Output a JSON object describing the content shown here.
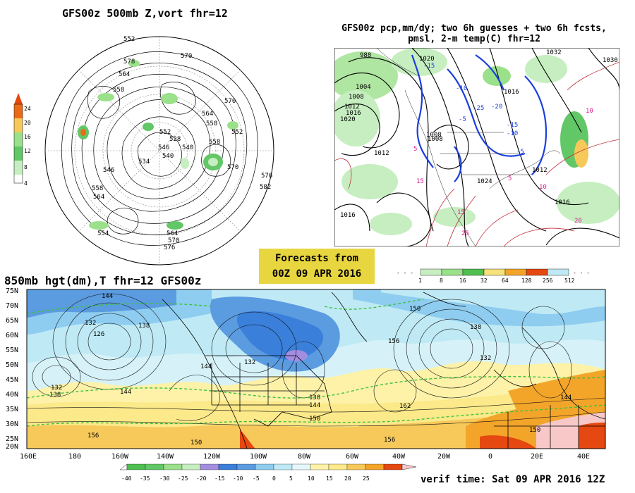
{
  "panel_nh": {
    "title": "GFS00z  500mb Z,vort    fhr=12",
    "colorbar": [
      "24",
      "20",
      "16",
      "12",
      "8",
      "4"
    ],
    "contour_labels": [
      "552",
      "570",
      "578",
      "564",
      "558",
      "546",
      "540",
      "570",
      "552",
      "564",
      "558",
      "570",
      "576",
      "582",
      "558",
      "564",
      "576",
      "570",
      "564",
      "554",
      "546",
      "540",
      "528",
      "534",
      "552",
      "558"
    ]
  },
  "panel_pcp": {
    "title_line1": "GFS00z pcp,mm/dy; two 6h guesses + two 6h fcsts,",
    "title_line2": "pmsl, 2-m temp(C)  fhr=12",
    "colorbar": [
      "1",
      "8",
      "16",
      "32",
      "64",
      "128",
      "256",
      "512"
    ],
    "pressure_labels": [
      "988",
      "1004",
      "1008",
      "1012",
      "1020",
      "1016",
      "1008",
      "1012",
      "1016",
      "1020",
      "1024",
      "1016",
      "1032",
      "1030",
      "1008",
      "1012",
      "1016"
    ],
    "temp_labels_blue": [
      "-15",
      "-10",
      "-5",
      "-20",
      "-25",
      "-15",
      "-10",
      "-5"
    ],
    "temp_labels_pink": [
      "5",
      "15",
      "10",
      "15",
      "20",
      "25",
      "10",
      "5"
    ]
  },
  "forecast_box": {
    "line1": "Forecasts from",
    "line2": "00Z 09 APR 2016"
  },
  "panel_850": {
    "title": "850mb hgt(dm),T  fhr=12 GFS00z",
    "lat_labels": [
      "75N",
      "70N",
      "65N",
      "60N",
      "55N",
      "50N",
      "45N",
      "40N",
      "35N",
      "30N",
      "25N",
      "20N"
    ],
    "lon_labels": [
      "160E",
      "180",
      "160W",
      "140W",
      "120W",
      "100W",
      "80W",
      "60W",
      "40W",
      "20W",
      "0",
      "20E",
      "40E"
    ],
    "height_labels": [
      "144",
      "132",
      "126",
      "138",
      "144",
      "156",
      "150",
      "138",
      "132",
      "144",
      "156",
      "162",
      "150",
      "144",
      "138",
      "132",
      "150",
      "138",
      "156",
      "150",
      "144",
      "132"
    ],
    "colorbar": [
      "-40",
      "-35",
      "-30",
      "-25",
      "-20",
      "-15",
      "-10",
      "-5",
      "0",
      "5",
      "10",
      "15",
      "20",
      "25"
    ],
    "verif_time": "verif time: Sat 09 APR 2016 12Z"
  },
  "colors": {
    "cold": "#3a7fd9",
    "ice": "#bfeaf5",
    "warm": "#f7c95a",
    "hot": "#e54810",
    "box": "#e8d640"
  }
}
